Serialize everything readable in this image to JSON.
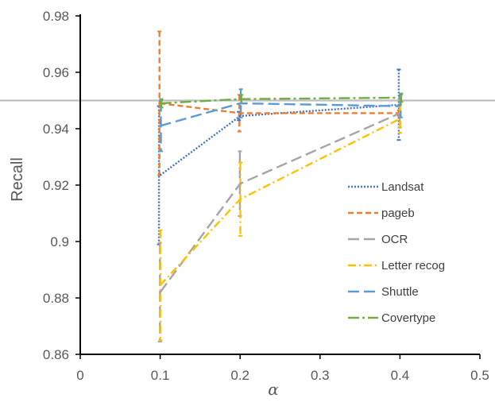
{
  "chart_data": {
    "type": "line",
    "xlabel": "α",
    "ylabel": "Recall",
    "xlim": [
      0,
      0.5
    ],
    "ylim": [
      0.86,
      0.98
    ],
    "x_ticks": [
      "0",
      "0.1",
      "0.2",
      "0.3",
      "0.4",
      "0.5"
    ],
    "y_ticks": [
      "0.86",
      "0.88",
      "0.9",
      "0.92",
      "0.94",
      "0.96",
      "0.98"
    ],
    "grid": false,
    "legend_position": "right",
    "x": [
      0.1,
      0.2,
      0.4
    ],
    "reference_line": {
      "y": 0.95,
      "color": "#BFBFBF"
    },
    "series": [
      {
        "name": "Landsat",
        "values": [
          0.9235,
          0.9445,
          0.9485
        ],
        "error": [
          0.0245,
          0.0015,
          0.0125
        ],
        "color": "#4472C4",
        "dash": "dotted"
      },
      {
        "name": "pageb",
        "values": [
          0.949,
          0.9455,
          0.9455
        ],
        "error": [
          0.0255,
          0.0065,
          0.001
        ],
        "color": "#ED7D31",
        "dash": "dash"
      },
      {
        "name": "OCR",
        "values": [
          0.882,
          0.9205,
          0.9455
        ],
        "error": [
          0.0175,
          0.0115,
          0.005
        ],
        "color": "#A5A5A5",
        "dash": "longdash"
      },
      {
        "name": "Letter recog",
        "values": [
          0.8845,
          0.915,
          0.9435
        ],
        "error": [
          0.0195,
          0.013,
          0.005
        ],
        "color": "#FFC000",
        "dash": "dashdot"
      },
      {
        "name": "Shuttle",
        "values": [
          0.941,
          0.949,
          0.948
        ],
        "error": [
          0.009,
          0.005,
          0.004
        ],
        "color": "#5B9BD5",
        "dash": "longdash"
      },
      {
        "name": "Covertype",
        "values": [
          0.949,
          0.9505,
          0.951
        ],
        "error": [
          0.0015,
          0.0015,
          0.0015
        ],
        "color": "#70AD47",
        "dash": "longdashdot"
      }
    ]
  }
}
